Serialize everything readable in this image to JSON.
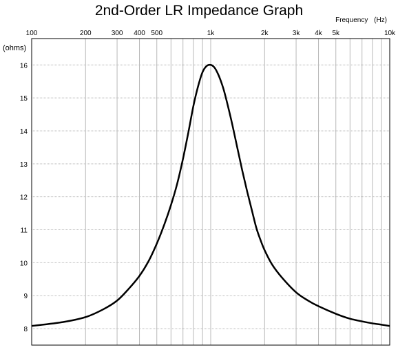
{
  "chart_data": {
    "type": "line",
    "title": "2nd-Order LR Impedance Graph",
    "xlabel": "Frequency   (Hz)",
    "ylabel": "(ohms)",
    "x_scale": "log",
    "xlim": [
      100,
      10000
    ],
    "ylim": [
      7.5,
      16.8
    ],
    "grid": true,
    "x_ticks": [
      {
        "value": 100,
        "label": "100"
      },
      {
        "value": 200,
        "label": "200"
      },
      {
        "value": 300,
        "label": "300"
      },
      {
        "value": 400,
        "label": "400"
      },
      {
        "value": 500,
        "label": "500"
      },
      {
        "value": 1000,
        "label": "1k"
      },
      {
        "value": 2000,
        "label": "2k"
      },
      {
        "value": 3000,
        "label": "3k"
      },
      {
        "value": 4000,
        "label": "4k"
      },
      {
        "value": 5000,
        "label": "5k"
      },
      {
        "value": 10000,
        "label": "10k"
      }
    ],
    "x_minor_grid": [
      600,
      700,
      800,
      900,
      6000,
      7000,
      8000,
      9000
    ],
    "y_ticks": [
      8,
      9,
      10,
      11,
      12,
      13,
      14,
      15,
      16
    ],
    "series": [
      {
        "color": "#000000",
        "x": [
          100,
          150,
          200,
          250,
          300,
          350,
          400,
          450,
          500,
          550,
          600,
          650,
          700,
          750,
          800,
          850,
          900,
          950,
          1000,
          1050,
          1100,
          1150,
          1200,
          1300,
          1400,
          1500,
          1600,
          1700,
          1800,
          1900,
          2000,
          2200,
          2500,
          3000,
          3500,
          4000,
          5000,
          6000,
          7000,
          8000,
          9000,
          10000
        ],
        "values": [
          8.08,
          8.2,
          8.35,
          8.58,
          8.85,
          9.22,
          9.6,
          10.05,
          10.58,
          11.15,
          11.75,
          12.4,
          13.15,
          13.95,
          14.75,
          15.35,
          15.78,
          15.97,
          16.0,
          15.92,
          15.72,
          15.45,
          15.12,
          14.35,
          13.55,
          12.8,
          12.15,
          11.58,
          11.05,
          10.68,
          10.38,
          9.95,
          9.55,
          9.1,
          8.85,
          8.68,
          8.45,
          8.3,
          8.22,
          8.16,
          8.12,
          8.08
        ]
      }
    ]
  }
}
